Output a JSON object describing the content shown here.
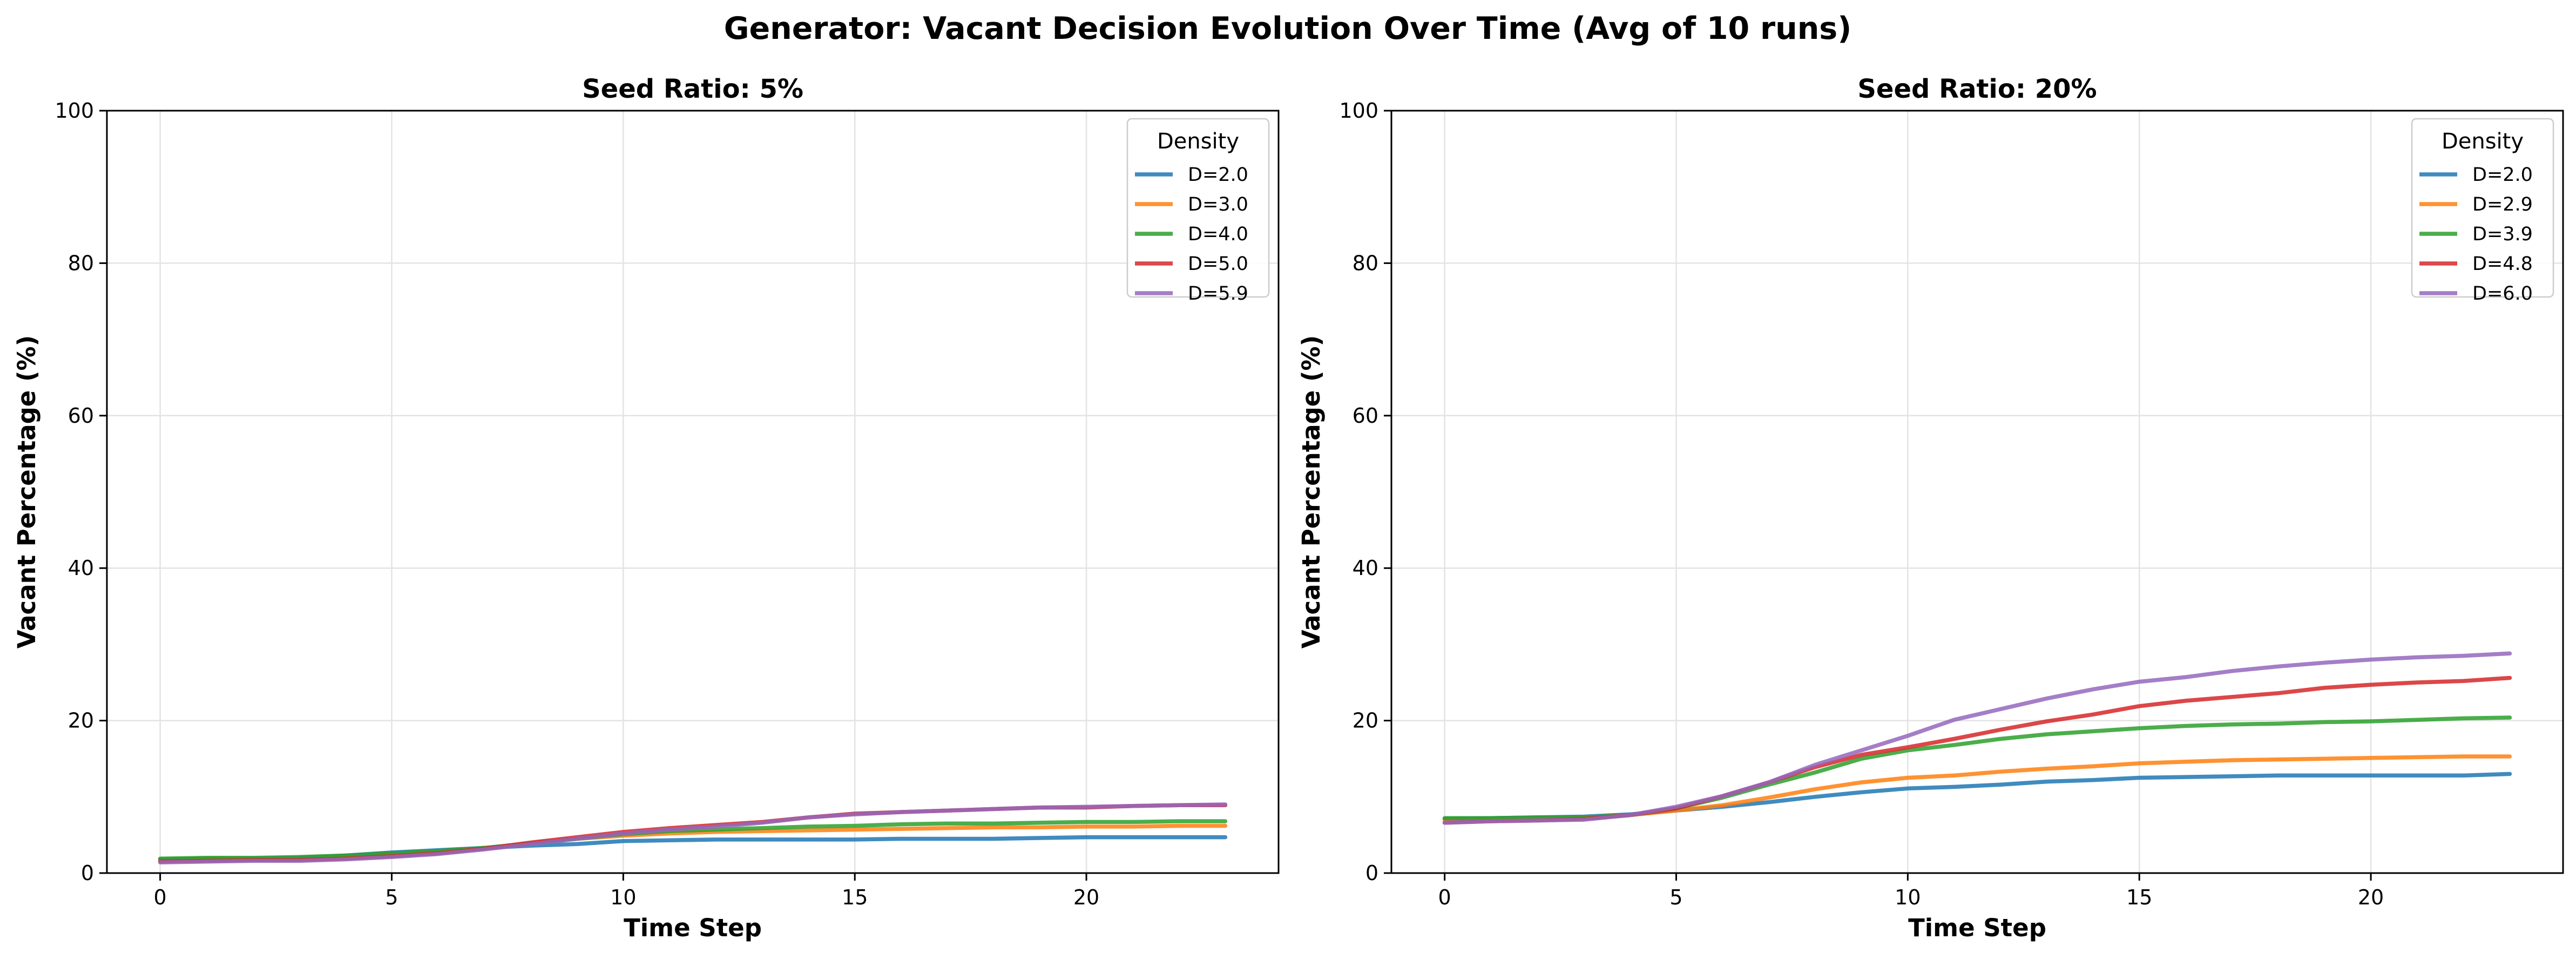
{
  "figure": {
    "title": "Generator: Vacant Decision Evolution Over Time (Avg of 10 runs)"
  },
  "chart_data": [
    {
      "type": "line",
      "title": "Seed Ratio: 5%",
      "xlabel": "Time Step",
      "ylabel": "Vacant Percentage (%)",
      "xlim": [
        -1.15,
        24.15
      ],
      "ylim": [
        0,
        100
      ],
      "xticks": [
        0,
        5,
        10,
        15,
        20
      ],
      "yticks": [
        0,
        20,
        40,
        60,
        80,
        100
      ],
      "grid": true,
      "legend": {
        "title": "Density",
        "position": "top-right"
      },
      "x": [
        0,
        1,
        2,
        3,
        4,
        5,
        6,
        7,
        8,
        9,
        10,
        11,
        12,
        13,
        14,
        15,
        16,
        17,
        18,
        19,
        20,
        21,
        22,
        23
      ],
      "series": [
        {
          "name": "D=2.0",
          "color": "#1f77b4",
          "values": [
            1.8,
            1.9,
            1.9,
            2.0,
            2.3,
            2.7,
            3.0,
            3.3,
            3.6,
            3.8,
            4.2,
            4.3,
            4.4,
            4.4,
            4.4,
            4.4,
            4.5,
            4.5,
            4.5,
            4.6,
            4.7,
            4.7,
            4.7,
            4.7
          ]
        },
        {
          "name": "D=3.0",
          "color": "#ff7f0e",
          "values": [
            1.6,
            1.7,
            1.8,
            1.8,
            2.0,
            2.3,
            2.7,
            3.2,
            3.9,
            4.5,
            4.9,
            5.2,
            5.4,
            5.5,
            5.6,
            5.7,
            5.8,
            5.9,
            6.0,
            6.0,
            6.1,
            6.1,
            6.2,
            6.2
          ]
        },
        {
          "name": "D=4.0",
          "color": "#2ca02c",
          "values": [
            1.9,
            2.0,
            2.0,
            2.1,
            2.3,
            2.6,
            2.9,
            3.3,
            3.9,
            4.5,
            5.1,
            5.5,
            5.7,
            5.9,
            6.1,
            6.2,
            6.4,
            6.5,
            6.5,
            6.6,
            6.7,
            6.7,
            6.8,
            6.8
          ]
        },
        {
          "name": "D=5.0",
          "color": "#d62728",
          "values": [
            1.5,
            1.6,
            1.7,
            1.7,
            1.9,
            2.2,
            2.6,
            3.2,
            4.0,
            4.7,
            5.4,
            5.9,
            6.3,
            6.7,
            7.3,
            7.8,
            8.0,
            8.2,
            8.4,
            8.6,
            8.6,
            8.8,
            8.9,
            8.9
          ]
        },
        {
          "name": "D=5.9",
          "color": "#9467bd",
          "values": [
            1.4,
            1.5,
            1.6,
            1.6,
            1.8,
            2.1,
            2.5,
            3.1,
            3.8,
            4.5,
            5.2,
            5.7,
            6.1,
            6.6,
            7.3,
            7.7,
            8.0,
            8.2,
            8.4,
            8.6,
            8.7,
            8.8,
            8.9,
            9.0
          ]
        }
      ]
    },
    {
      "type": "line",
      "title": "Seed Ratio: 20%",
      "xlabel": "Time Step",
      "ylabel": "Vacant Percentage (%)",
      "xlim": [
        -1.15,
        24.15
      ],
      "ylim": [
        0,
        100
      ],
      "xticks": [
        0,
        5,
        10,
        15,
        20
      ],
      "yticks": [
        0,
        20,
        40,
        60,
        80,
        100
      ],
      "grid": true,
      "legend": {
        "title": "Density",
        "position": "top-right"
      },
      "x": [
        0,
        1,
        2,
        3,
        4,
        5,
        6,
        7,
        8,
        9,
        10,
        11,
        12,
        13,
        14,
        15,
        16,
        17,
        18,
        19,
        20,
        21,
        22,
        23
      ],
      "series": [
        {
          "name": "D=2.0",
          "color": "#1f77b4",
          "values": [
            7.1,
            7.2,
            7.3,
            7.4,
            7.7,
            8.2,
            8.7,
            9.3,
            10.0,
            10.6,
            11.1,
            11.3,
            11.6,
            12.0,
            12.2,
            12.5,
            12.6,
            12.7,
            12.8,
            12.8,
            12.8,
            12.8,
            12.8,
            13.0
          ]
        },
        {
          "name": "D=2.9",
          "color": "#ff7f0e",
          "values": [
            6.9,
            7.0,
            7.1,
            7.2,
            7.6,
            8.2,
            8.9,
            9.9,
            11.0,
            11.9,
            12.5,
            12.8,
            13.3,
            13.7,
            14.0,
            14.4,
            14.6,
            14.8,
            14.9,
            15.0,
            15.1,
            15.2,
            15.3,
            15.3
          ]
        },
        {
          "name": "D=3.9",
          "color": "#2ca02c",
          "values": [
            7.2,
            7.2,
            7.3,
            7.3,
            7.6,
            8.5,
            9.9,
            11.6,
            13.2,
            15.0,
            16.1,
            16.8,
            17.6,
            18.2,
            18.6,
            19.0,
            19.3,
            19.5,
            19.6,
            19.8,
            19.9,
            20.1,
            20.3,
            20.4
          ]
        },
        {
          "name": "D=4.8",
          "color": "#d62728",
          "values": [
            6.6,
            6.8,
            6.9,
            7.1,
            7.6,
            8.5,
            10.1,
            11.9,
            13.9,
            15.5,
            16.5,
            17.6,
            18.8,
            19.9,
            20.8,
            21.9,
            22.6,
            23.1,
            23.6,
            24.3,
            24.7,
            25.0,
            25.2,
            25.6
          ]
        },
        {
          "name": "D=6.0",
          "color": "#9467bd",
          "values": [
            6.6,
            6.8,
            6.9,
            7.0,
            7.6,
            8.7,
            10.1,
            11.9,
            14.2,
            16.1,
            18.0,
            20.1,
            21.5,
            22.9,
            24.1,
            25.1,
            25.7,
            26.5,
            27.1,
            27.6,
            28.0,
            28.3,
            28.5,
            28.8
          ]
        }
      ]
    }
  ]
}
